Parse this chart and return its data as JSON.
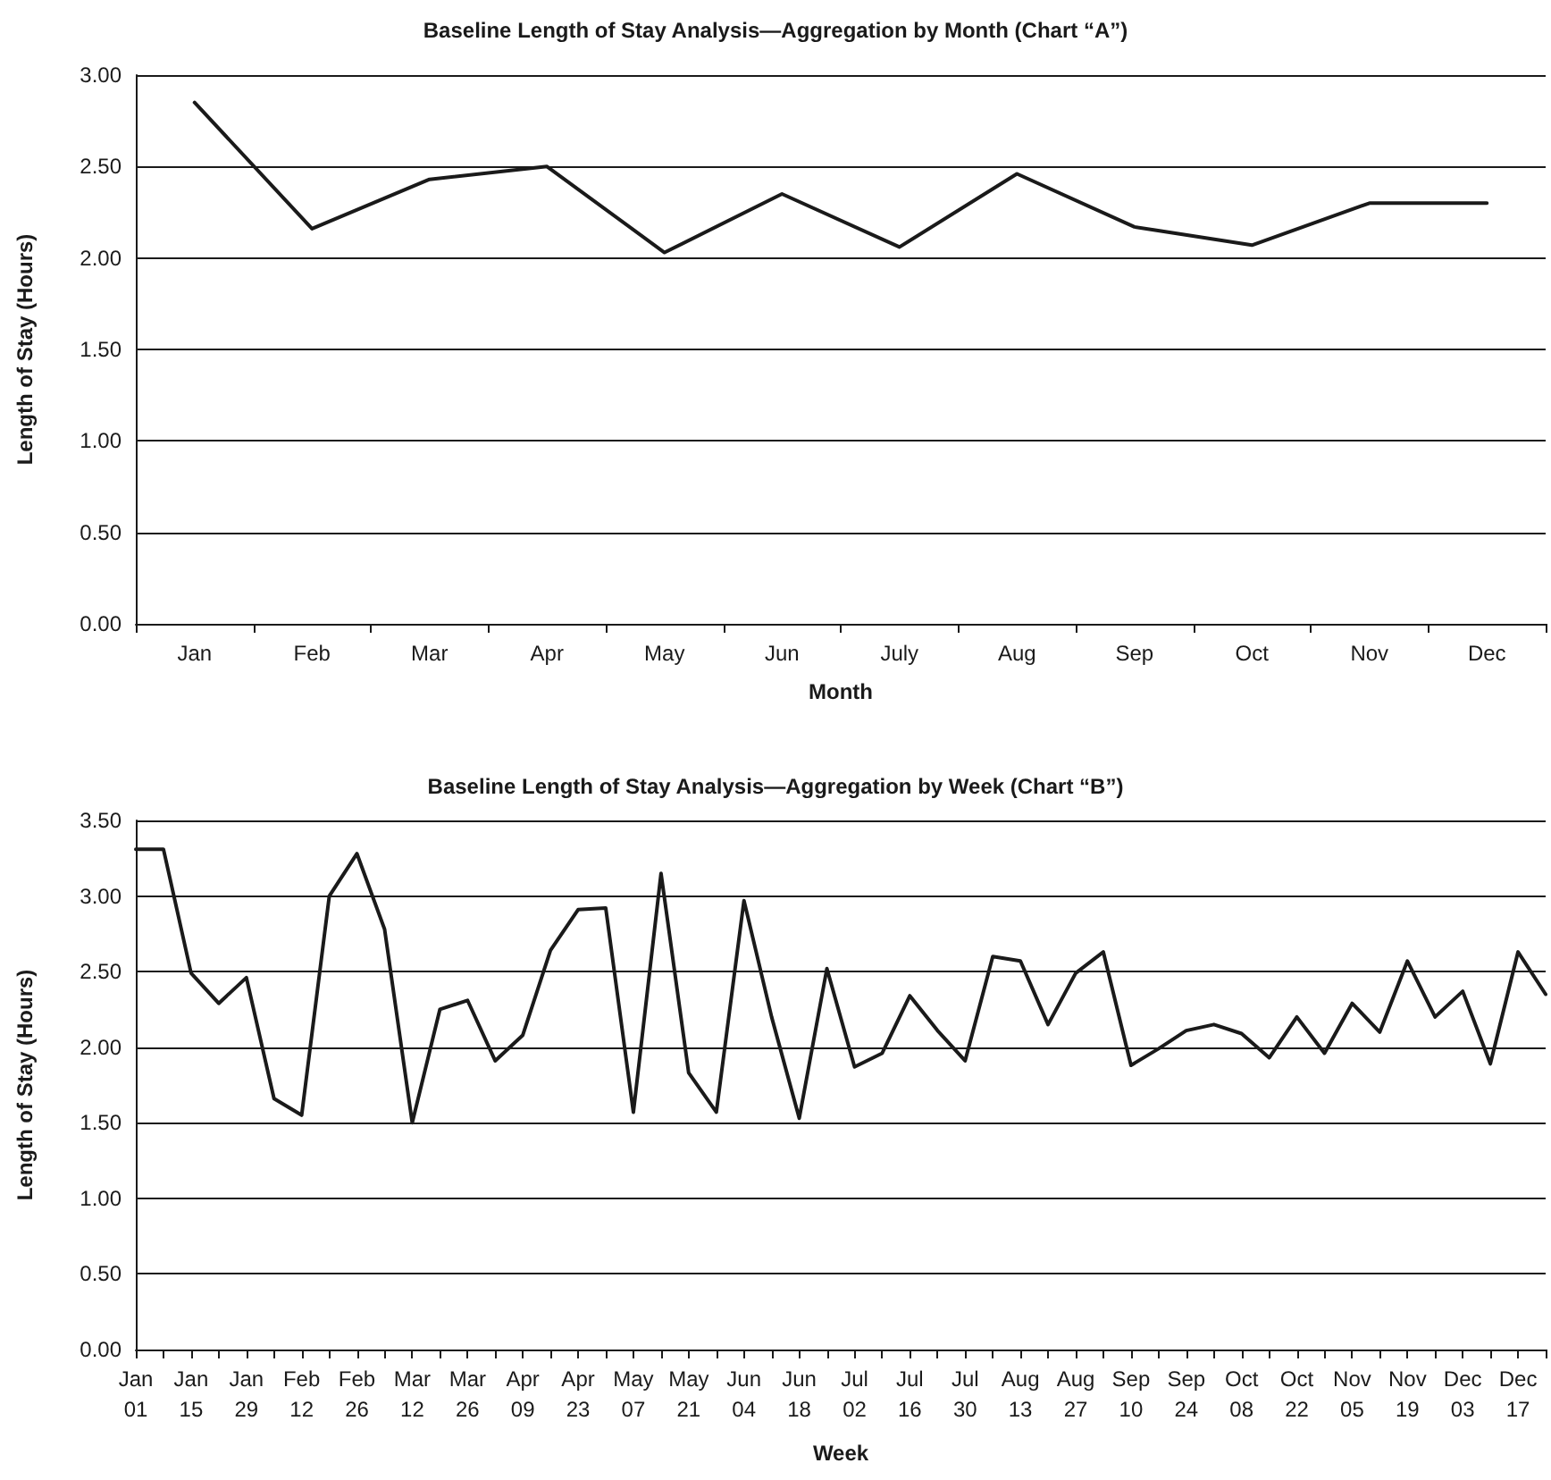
{
  "chart_data": [
    {
      "type": "line",
      "title": "Baseline Length of Stay Analysis—Aggregation by Month (Chart “A”)",
      "xlabel": "Month",
      "ylabel": "Length of Stay (Hours)",
      "categories": [
        "Jan",
        "Feb",
        "Mar",
        "Apr",
        "May",
        "Jun",
        "July",
        "Aug",
        "Sep",
        "Oct",
        "Nov",
        "Dec"
      ],
      "series": [
        {
          "color": "#1a1a1a",
          "values": [
            2.85,
            2.16,
            2.43,
            2.5,
            2.03,
            2.35,
            2.06,
            2.46,
            2.17,
            2.07,
            2.3,
            2.3
          ]
        }
      ],
      "ylim": [
        0,
        3
      ],
      "yticks": [
        {
          "value": 0,
          "label": "0.00"
        },
        {
          "value": 0.5,
          "label": "0.50"
        },
        {
          "value": 1,
          "label": "1.00"
        },
        {
          "value": 1.5,
          "label": "1.50"
        },
        {
          "value": 2,
          "label": "2.00"
        },
        {
          "value": 2.5,
          "label": "2.50"
        },
        {
          "value": 3,
          "label": "3.00"
        }
      ],
      "grid": "y",
      "marker": "none",
      "line_style": "solid"
    },
    {
      "type": "line",
      "title": "Baseline Length of Stay Analysis—Aggregation by Week (Chart “B”)",
      "xlabel": "Week",
      "ylabel": "Length of Stay (Hours)",
      "categories": [
        "Jan 01",
        null,
        "Jan 15",
        null,
        "Jan 29",
        null,
        "Feb 12",
        null,
        "Feb 26",
        null,
        "Mar 12",
        null,
        "Mar 26",
        null,
        "Apr 09",
        null,
        "Apr 23",
        null,
        "May 07",
        null,
        "May 21",
        null,
        "Jun 04",
        null,
        "Jun 18",
        null,
        "Jul 02",
        null,
        "Jul 16",
        null,
        "Jul 30",
        null,
        "Aug 13",
        null,
        "Aug 27",
        null,
        "Sep 10",
        null,
        "Sep 24",
        null,
        "Oct 08",
        null,
        "Oct 22",
        null,
        "Nov 05",
        null,
        "Nov 19",
        null,
        "Dec 03",
        null,
        "Dec 17",
        null
      ],
      "series": [
        {
          "color": "#1a1a1a",
          "values": [
            3.31,
            3.31,
            2.49,
            2.29,
            2.46,
            1.66,
            1.55,
            3.0,
            3.28,
            2.78,
            1.5,
            2.25,
            2.31,
            1.91,
            2.08,
            2.64,
            2.91,
            2.92,
            1.57,
            3.15,
            1.83,
            1.57,
            2.97,
            2.2,
            1.53,
            2.52,
            1.87,
            1.96,
            2.34,
            2.11,
            1.91,
            2.6,
            2.57,
            2.15,
            2.49,
            2.63,
            1.88,
            1.99,
            2.11,
            2.15,
            2.09,
            1.93,
            2.2,
            1.96,
            2.29,
            2.1,
            2.57,
            2.2,
            2.37,
            1.89,
            2.63,
            2.35
          ]
        }
      ],
      "ylim": [
        0,
        3.5
      ],
      "yticks": [
        {
          "value": 0,
          "label": "0.00"
        },
        {
          "value": 0.5,
          "label": "0.50"
        },
        {
          "value": 1,
          "label": "1.00"
        },
        {
          "value": 1.5,
          "label": "1.50"
        },
        {
          "value": 2,
          "label": "2.00"
        },
        {
          "value": 2.5,
          "label": "2.50"
        },
        {
          "value": 3,
          "label": "3.00"
        },
        {
          "value": 3.5,
          "label": "3.50"
        }
      ],
      "grid": "y",
      "marker": "none",
      "line_style": "solid"
    }
  ]
}
